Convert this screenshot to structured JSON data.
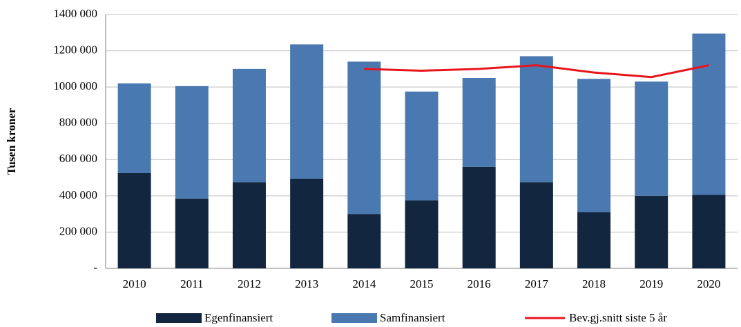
{
  "chart_data": {
    "type": "bar",
    "stacked": true,
    "y_label": "Tusen kroner",
    "categories": [
      "2010",
      "2011",
      "2012",
      "2013",
      "2014",
      "2015",
      "2016",
      "2017",
      "2018",
      "2019",
      "2020"
    ],
    "series": [
      {
        "name": "Egenfinansiert",
        "color": "#12263f",
        "type": "bar",
        "values": [
          525000,
          385000,
          475000,
          495000,
          300000,
          375000,
          560000,
          475000,
          310000,
          400000,
          405000
        ]
      },
      {
        "name": "Samfinansiert",
        "color": "#4a78b0",
        "type": "bar",
        "values": [
          495000,
          620000,
          625000,
          740000,
          840000,
          600000,
          490000,
          695000,
          735000,
          630000,
          890000
        ]
      },
      {
        "name": "Bev.gj.snitt siste 5 år",
        "color": "#e8141c",
        "type": "line",
        "values": [
          null,
          null,
          null,
          null,
          1100000,
          1090000,
          1100000,
          1120000,
          1080000,
          1055000,
          1120000
        ]
      }
    ],
    "ylim": [
      0,
      1400000
    ],
    "yticks": [
      {
        "value": 0,
        "label": "-"
      },
      {
        "value": 200000,
        "label": "200 000"
      },
      {
        "value": 400000,
        "label": "400 000"
      },
      {
        "value": 600000,
        "label": "600 000"
      },
      {
        "value": 800000,
        "label": "800 000"
      },
      {
        "value": 1000000,
        "label": "1000 000"
      },
      {
        "value": 1200000,
        "label": "1200 000"
      },
      {
        "value": 1400000,
        "label": "1400 000"
      }
    ],
    "grid": true
  }
}
